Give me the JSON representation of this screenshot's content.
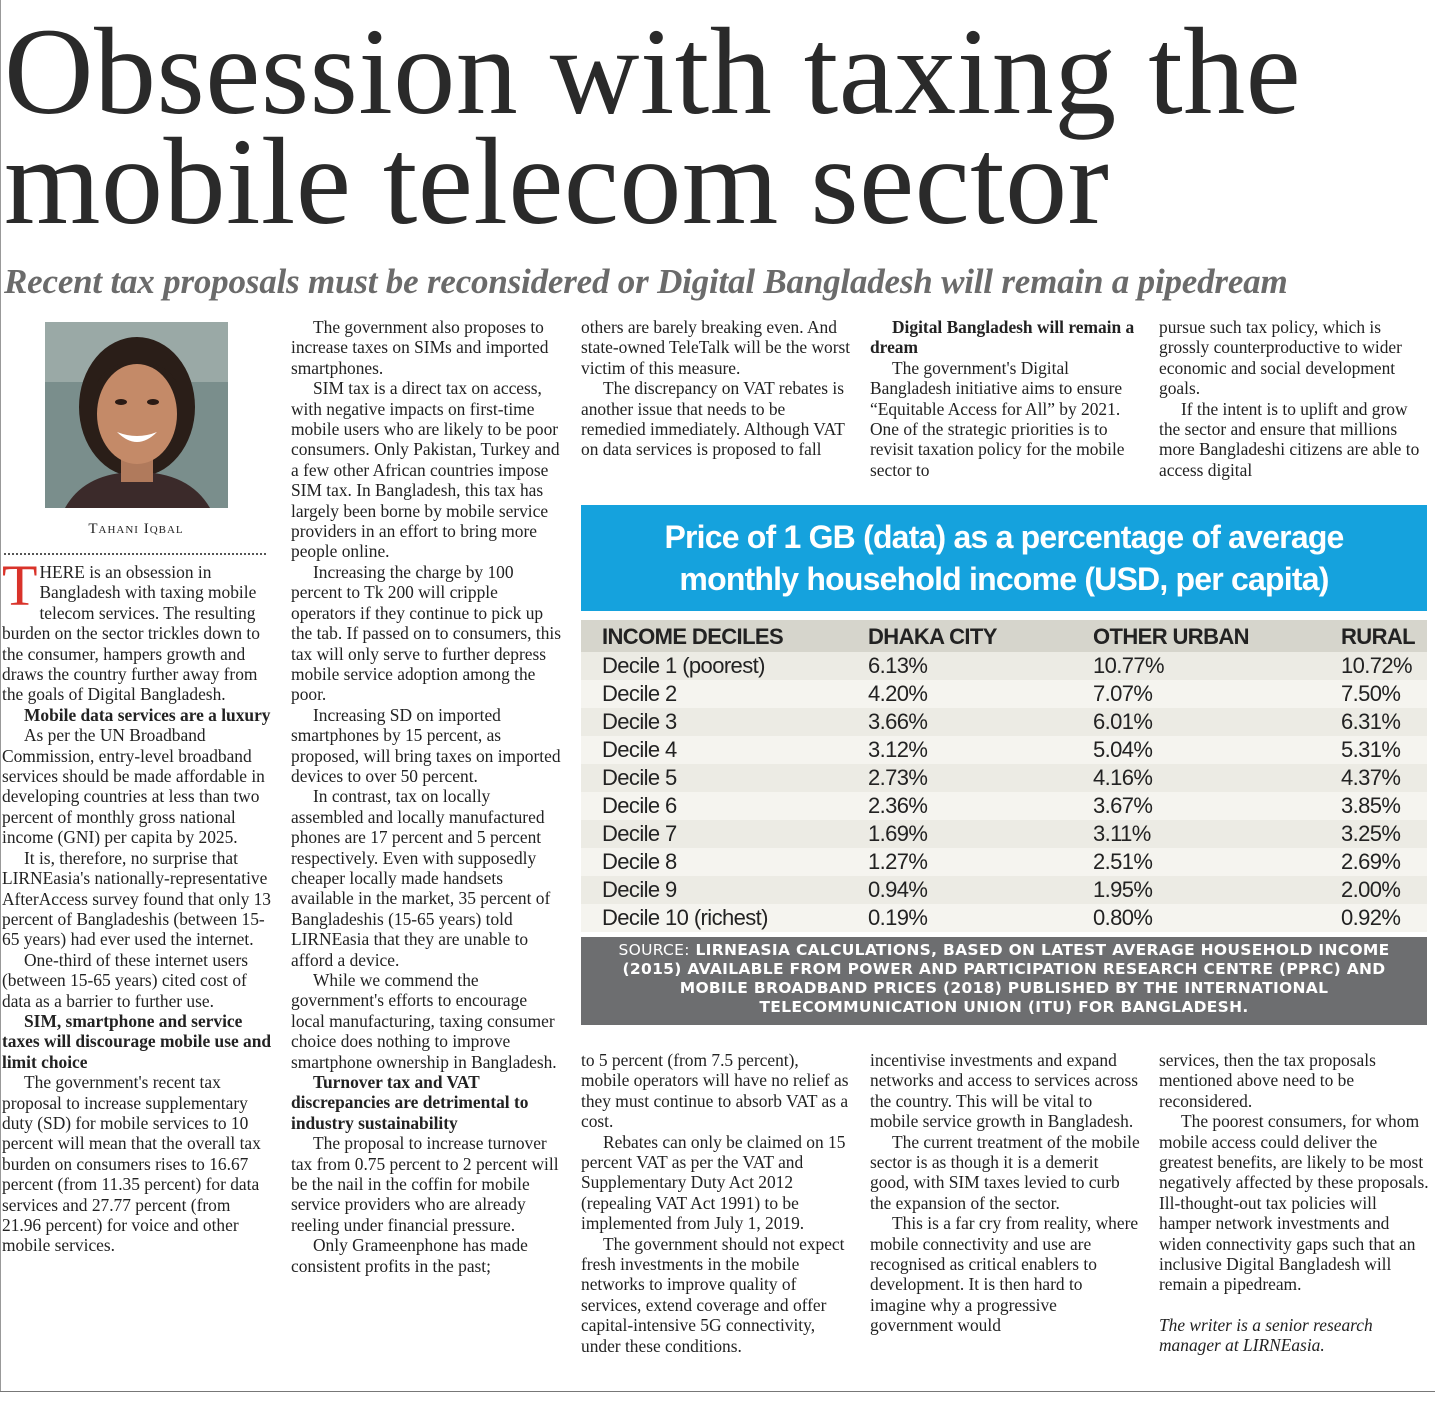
{
  "header": {
    "title_line1": "Obsession with taxing the",
    "title_line2": "mobile telecom sector",
    "subtitle": "Recent tax proposals must be reconsidered or Digital Bangladesh will remain a pipedream"
  },
  "byline": "Tahani Iqbal",
  "columns": [
    {
      "blocks": [
        {
          "type": "dropcap",
          "letter": "T",
          "text": "HERE is an obsession in Bangladesh with taxing mobile telecom services. The resulting burden on the sector trickles down to the consumer, hampers growth and draws the country further away from the goals of Digital Bangladesh."
        },
        {
          "type": "heading",
          "text": "Mobile data services are a luxury"
        },
        {
          "type": "p",
          "text": "As per the UN Broadband Commission, entry-level broadband services should be made affordable in developing countries at less than two percent of monthly gross national income (GNI) per capita by 2025."
        },
        {
          "type": "p",
          "text": "It is, therefore, no surprise that LIRNEasia's nationally-representative AfterAccess survey found that only 13 percent of Bangladeshis (between 15-65 years) had ever used the internet."
        },
        {
          "type": "p",
          "text": "One-third of these internet users (between 15-65 years) cited cost of data as a barrier to further use."
        },
        {
          "type": "heading",
          "text": "SIM, smartphone and service taxes will discourage mobile use and limit choice"
        },
        {
          "type": "p",
          "text": "The government's recent tax proposal to increase supplementary duty (SD) for mobile services to 10 percent will mean that the overall tax burden on consumers rises to 16.67 percent (from 11.35 percent) for data services and 27.77 percent (from 21.96 percent) for voice and other mobile services."
        }
      ]
    },
    {
      "blocks": [
        {
          "type": "p",
          "text": "The government also proposes to increase taxes on SIMs and imported smartphones."
        },
        {
          "type": "p",
          "text": "SIM tax is a direct tax on access, with negative impacts on first-time mobile users who are likely to be poor consumers. Only Pakistan, Turkey and a few other African countries impose SIM tax. In Bangladesh, this tax has largely been borne by mobile service providers in an effort to bring more people online."
        },
        {
          "type": "p",
          "text": "Increasing the charge by 100 percent to Tk 200 will cripple operators if they continue to pick up the tab. If passed on to consumers, this tax will only serve to further depress mobile service adoption among the poor."
        },
        {
          "type": "p",
          "text": "Increasing SD on imported smartphones by 15 percent, as proposed, will bring taxes on imported devices to over 50 percent."
        },
        {
          "type": "p",
          "text": "In contrast, tax on locally assembled and locally manufactured phones are 17 percent and 5 percent respectively. Even with supposedly cheaper locally made handsets available in the market, 35 percent of Bangladeshis (15-65 years) told LIRNEasia that they are unable to afford a device."
        },
        {
          "type": "p",
          "text": "While we commend the government's efforts to encourage local manufacturing, taxing consumer choice does nothing to improve smartphone ownership in Bangladesh."
        },
        {
          "type": "heading",
          "text": "Turnover tax and VAT discrepancies are detrimental to industry sustainability"
        },
        {
          "type": "p",
          "text": "The proposal to increase turnover tax from 0.75 percent to 2 percent will be the nail in the coffin for mobile service providers who are already reeling under financial pressure."
        },
        {
          "type": "p",
          "text": "Only Grameenphone has made consistent profits in the past;"
        }
      ]
    },
    {
      "blocks": [
        {
          "type": "cont",
          "text": "others are barely breaking even. And state-owned TeleTalk will be the worst victim of this measure."
        },
        {
          "type": "p",
          "text": "The discrepancy on VAT rebates is another issue that needs to be remedied immediately. Although VAT on data services is proposed to fall"
        }
      ]
    },
    {
      "blocks": [
        {
          "type": "heading",
          "text": "Digital Bangladesh will remain a dream"
        },
        {
          "type": "p",
          "text": "The government's Digital Bangladesh initiative aims to ensure “Equitable Access for All” by 2021. One of the strategic priorities is to revisit taxation policy for the mobile sector to"
        }
      ]
    },
    {
      "blocks": [
        {
          "type": "cont",
          "text": "pursue such tax policy, which is grossly counterproductive to wider economic and social development goals."
        },
        {
          "type": "p",
          "text": "If the intent is to uplift and grow the sector and ensure that millions more Bangladeshi citizens are able to access digital"
        }
      ]
    },
    {
      "blocks": [
        {
          "type": "cont",
          "text": "to 5 percent (from 7.5 percent), mobile operators will have no relief as they must continue to absorb VAT as a cost."
        },
        {
          "type": "p",
          "text": "Rebates can only be claimed on 15 percent VAT as per the VAT and Supplementary Duty Act 2012 (repealing VAT Act 1991) to be implemented from July 1, 2019."
        },
        {
          "type": "p",
          "text": "The government should not expect fresh investments in the mobile networks to improve quality of services, extend coverage and offer capital-intensive 5G connectivity, under these conditions."
        }
      ]
    },
    {
      "blocks": [
        {
          "type": "cont",
          "text": "incentivise investments and expand networks and access to services across the country. This will be vital to mobile service growth in Bangladesh."
        },
        {
          "type": "p",
          "text": "The current treatment of the mobile sector is as though it is a demerit good, with SIM taxes levied to curb the expansion of the sector."
        },
        {
          "type": "p",
          "text": "This is a far cry from reality, where mobile connectivity and use are recognised as critical enablers to development. It is then hard to imagine why a progressive government would"
        }
      ]
    },
    {
      "blocks": [
        {
          "type": "cont",
          "text": "services, then the tax proposals mentioned above need to be reconsidered."
        },
        {
          "type": "p",
          "text": "The poorest consumers, for whom mobile access could deliver the greatest benefits, are likely to be most negatively affected by these proposals. Ill-thought-out tax policies will hamper network investments and widen connectivity gaps such that an inclusive Digital Bangladesh will remain a pipedream."
        },
        {
          "type": "note",
          "text": "The writer is a senior research manager at LIRNEasia."
        }
      ]
    }
  ],
  "table": {
    "title": "Price of 1 GB (data) as a percentage of average monthly household income (USD, per capita)",
    "headers": [
      "INCOME DECILES",
      "DHAKA CITY",
      "OTHER URBAN",
      "RURAL"
    ],
    "rows": [
      [
        "Decile 1 (poorest)",
        "6.13%",
        "10.77%",
        "10.72%"
      ],
      [
        "Decile 2",
        "4.20%",
        "7.07%",
        "7.50%"
      ],
      [
        "Decile 3",
        "3.66%",
        "6.01%",
        "6.31%"
      ],
      [
        "Decile 4",
        "3.12%",
        "5.04%",
        "5.31%"
      ],
      [
        "Decile 5",
        "2.73%",
        "4.16%",
        "4.37%"
      ],
      [
        "Decile 6",
        "2.36%",
        "3.67%",
        "3.85%"
      ],
      [
        "Decile 7",
        "1.69%",
        "3.11%",
        "3.25%"
      ],
      [
        "Decile 8",
        "1.27%",
        "2.51%",
        "2.69%"
      ],
      [
        "Decile 9",
        "0.94%",
        "1.95%",
        "2.00%"
      ],
      [
        "Decile 10 (richest)",
        "0.19%",
        "0.80%",
        "0.92%"
      ]
    ],
    "source_label": "SOURCE:",
    "source_text": "LIRNEASIA CALCULATIONS, BASED ON LATEST AVERAGE HOUSEHOLD INCOME (2015) AVAILABLE FROM POWER AND PARTICIPATION RESEARCH CENTRE (PPRC) AND MOBILE BROADBAND PRICES (2018) PUBLISHED BY THE INTERNATIONAL TELECOMMUNICATION UNION (ITU) FOR BANGLADESH."
  }
}
